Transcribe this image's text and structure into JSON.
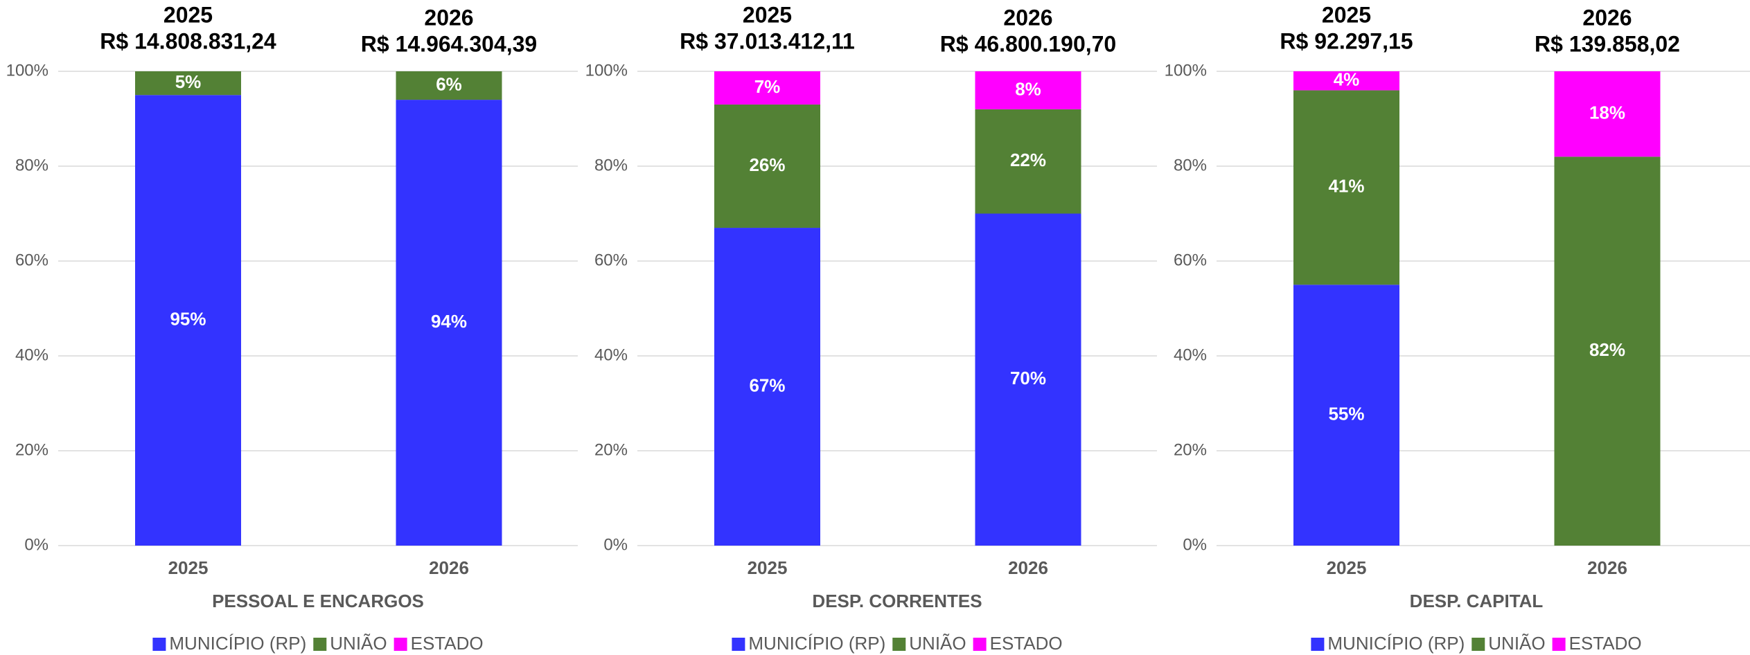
{
  "chart_data": [
    {
      "type": "bar",
      "stacked": true,
      "xlabel": "PESSOAL E ENCARGOS",
      "categories": [
        "2025",
        "2026"
      ],
      "annotations": [
        [
          "2025",
          "R$ 14.808.831,24"
        ],
        [
          "2026",
          "R$ 14.964.304,39"
        ]
      ],
      "series": [
        {
          "name": "MUNICÍPIO (RP)",
          "color": "#3333ff",
          "values": [
            95,
            94
          ],
          "value_labels": [
            "95%",
            "94%"
          ]
        },
        {
          "name": "UNIÃO",
          "color": "#538135",
          "values": [
            5,
            6
          ],
          "value_labels": [
            "5%",
            "6%"
          ]
        },
        {
          "name": "ESTADO",
          "color": "#ff00ff",
          "values": [
            0,
            0
          ],
          "value_labels": [
            null,
            null
          ]
        }
      ],
      "ylim": [
        0,
        100
      ],
      "yticks": [
        {
          "value": 0,
          "label": "0%"
        },
        {
          "value": 20,
          "label": "20%"
        },
        {
          "value": 40,
          "label": "40%"
        },
        {
          "value": 60,
          "label": "60%"
        },
        {
          "value": 80,
          "label": "80%"
        },
        {
          "value": 100,
          "label": "100%"
        }
      ],
      "grid": true,
      "legend": "bottom"
    },
    {
      "type": "bar",
      "stacked": true,
      "xlabel": "DESP. CORRENTES",
      "categories": [
        "2025",
        "2026"
      ],
      "annotations": [
        [
          "2025",
          "R$ 37.013.412,11"
        ],
        [
          "2026",
          "R$ 46.800.190,70"
        ]
      ],
      "series": [
        {
          "name": "MUNICÍPIO (RP)",
          "color": "#3333ff",
          "values": [
            67,
            70
          ],
          "value_labels": [
            "67%",
            "70%"
          ]
        },
        {
          "name": "UNIÃO",
          "color": "#538135",
          "values": [
            26,
            22
          ],
          "value_labels": [
            "26%",
            "22%"
          ]
        },
        {
          "name": "ESTADO",
          "color": "#ff00ff",
          "values": [
            7,
            8
          ],
          "value_labels": [
            "7%",
            "8%"
          ]
        }
      ],
      "ylim": [
        0,
        100
      ],
      "yticks": [
        {
          "value": 0,
          "label": "0%"
        },
        {
          "value": 20,
          "label": "20%"
        },
        {
          "value": 40,
          "label": "40%"
        },
        {
          "value": 60,
          "label": "60%"
        },
        {
          "value": 80,
          "label": "80%"
        },
        {
          "value": 100,
          "label": "100%"
        }
      ],
      "grid": true,
      "legend": "bottom"
    },
    {
      "type": "bar",
      "stacked": true,
      "xlabel": "DESP. CAPITAL",
      "categories": [
        "2025",
        "2026"
      ],
      "annotations": [
        [
          "2025",
          "R$ 92.297,15"
        ],
        [
          "2026",
          "R$ 139.858,02"
        ]
      ],
      "series": [
        {
          "name": "MUNICÍPIO (RP)",
          "color": "#3333ff",
          "values": [
            55,
            0
          ],
          "value_labels": [
            "55%",
            null
          ]
        },
        {
          "name": "UNIÃO",
          "color": "#538135",
          "values": [
            41,
            82
          ],
          "value_labels": [
            "41%",
            "82%"
          ]
        },
        {
          "name": "ESTADO",
          "color": "#ff00ff",
          "values": [
            4,
            18
          ],
          "value_labels": [
            "4%",
            "18%"
          ]
        }
      ],
      "ylim": [
        0,
        100
      ],
      "yticks": [
        {
          "value": 0,
          "label": "0%"
        },
        {
          "value": 20,
          "label": "20%"
        },
        {
          "value": 40,
          "label": "40%"
        },
        {
          "value": 60,
          "label": "60%"
        },
        {
          "value": 80,
          "label": "80%"
        },
        {
          "value": 100,
          "label": "100%"
        }
      ],
      "grid": true,
      "legend": "bottom"
    }
  ]
}
